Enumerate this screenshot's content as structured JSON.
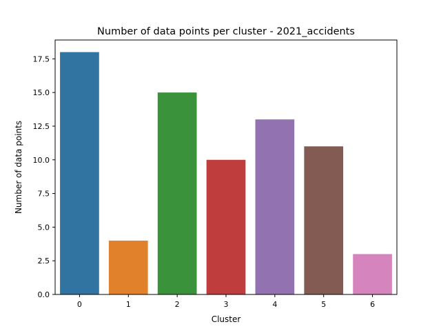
{
  "chart_data": {
    "type": "bar",
    "title": "Number of data points per cluster - 2021_accidents",
    "xlabel": "Cluster",
    "ylabel": "Number of data points",
    "categories": [
      "0",
      "1",
      "2",
      "3",
      "4",
      "5",
      "6"
    ],
    "values": [
      18,
      4,
      15,
      10,
      13,
      11,
      3
    ],
    "colors": [
      "#3274a1",
      "#e1812c",
      "#3a923a",
      "#c03d3e",
      "#9372b2",
      "#845b53",
      "#d684bd"
    ],
    "ylim": [
      0,
      18.9
    ],
    "yticks": [
      "0.0",
      "2.5",
      "5.0",
      "7.5",
      "10.0",
      "12.5",
      "15.0",
      "17.5"
    ],
    "grid": false,
    "legend": "none"
  }
}
